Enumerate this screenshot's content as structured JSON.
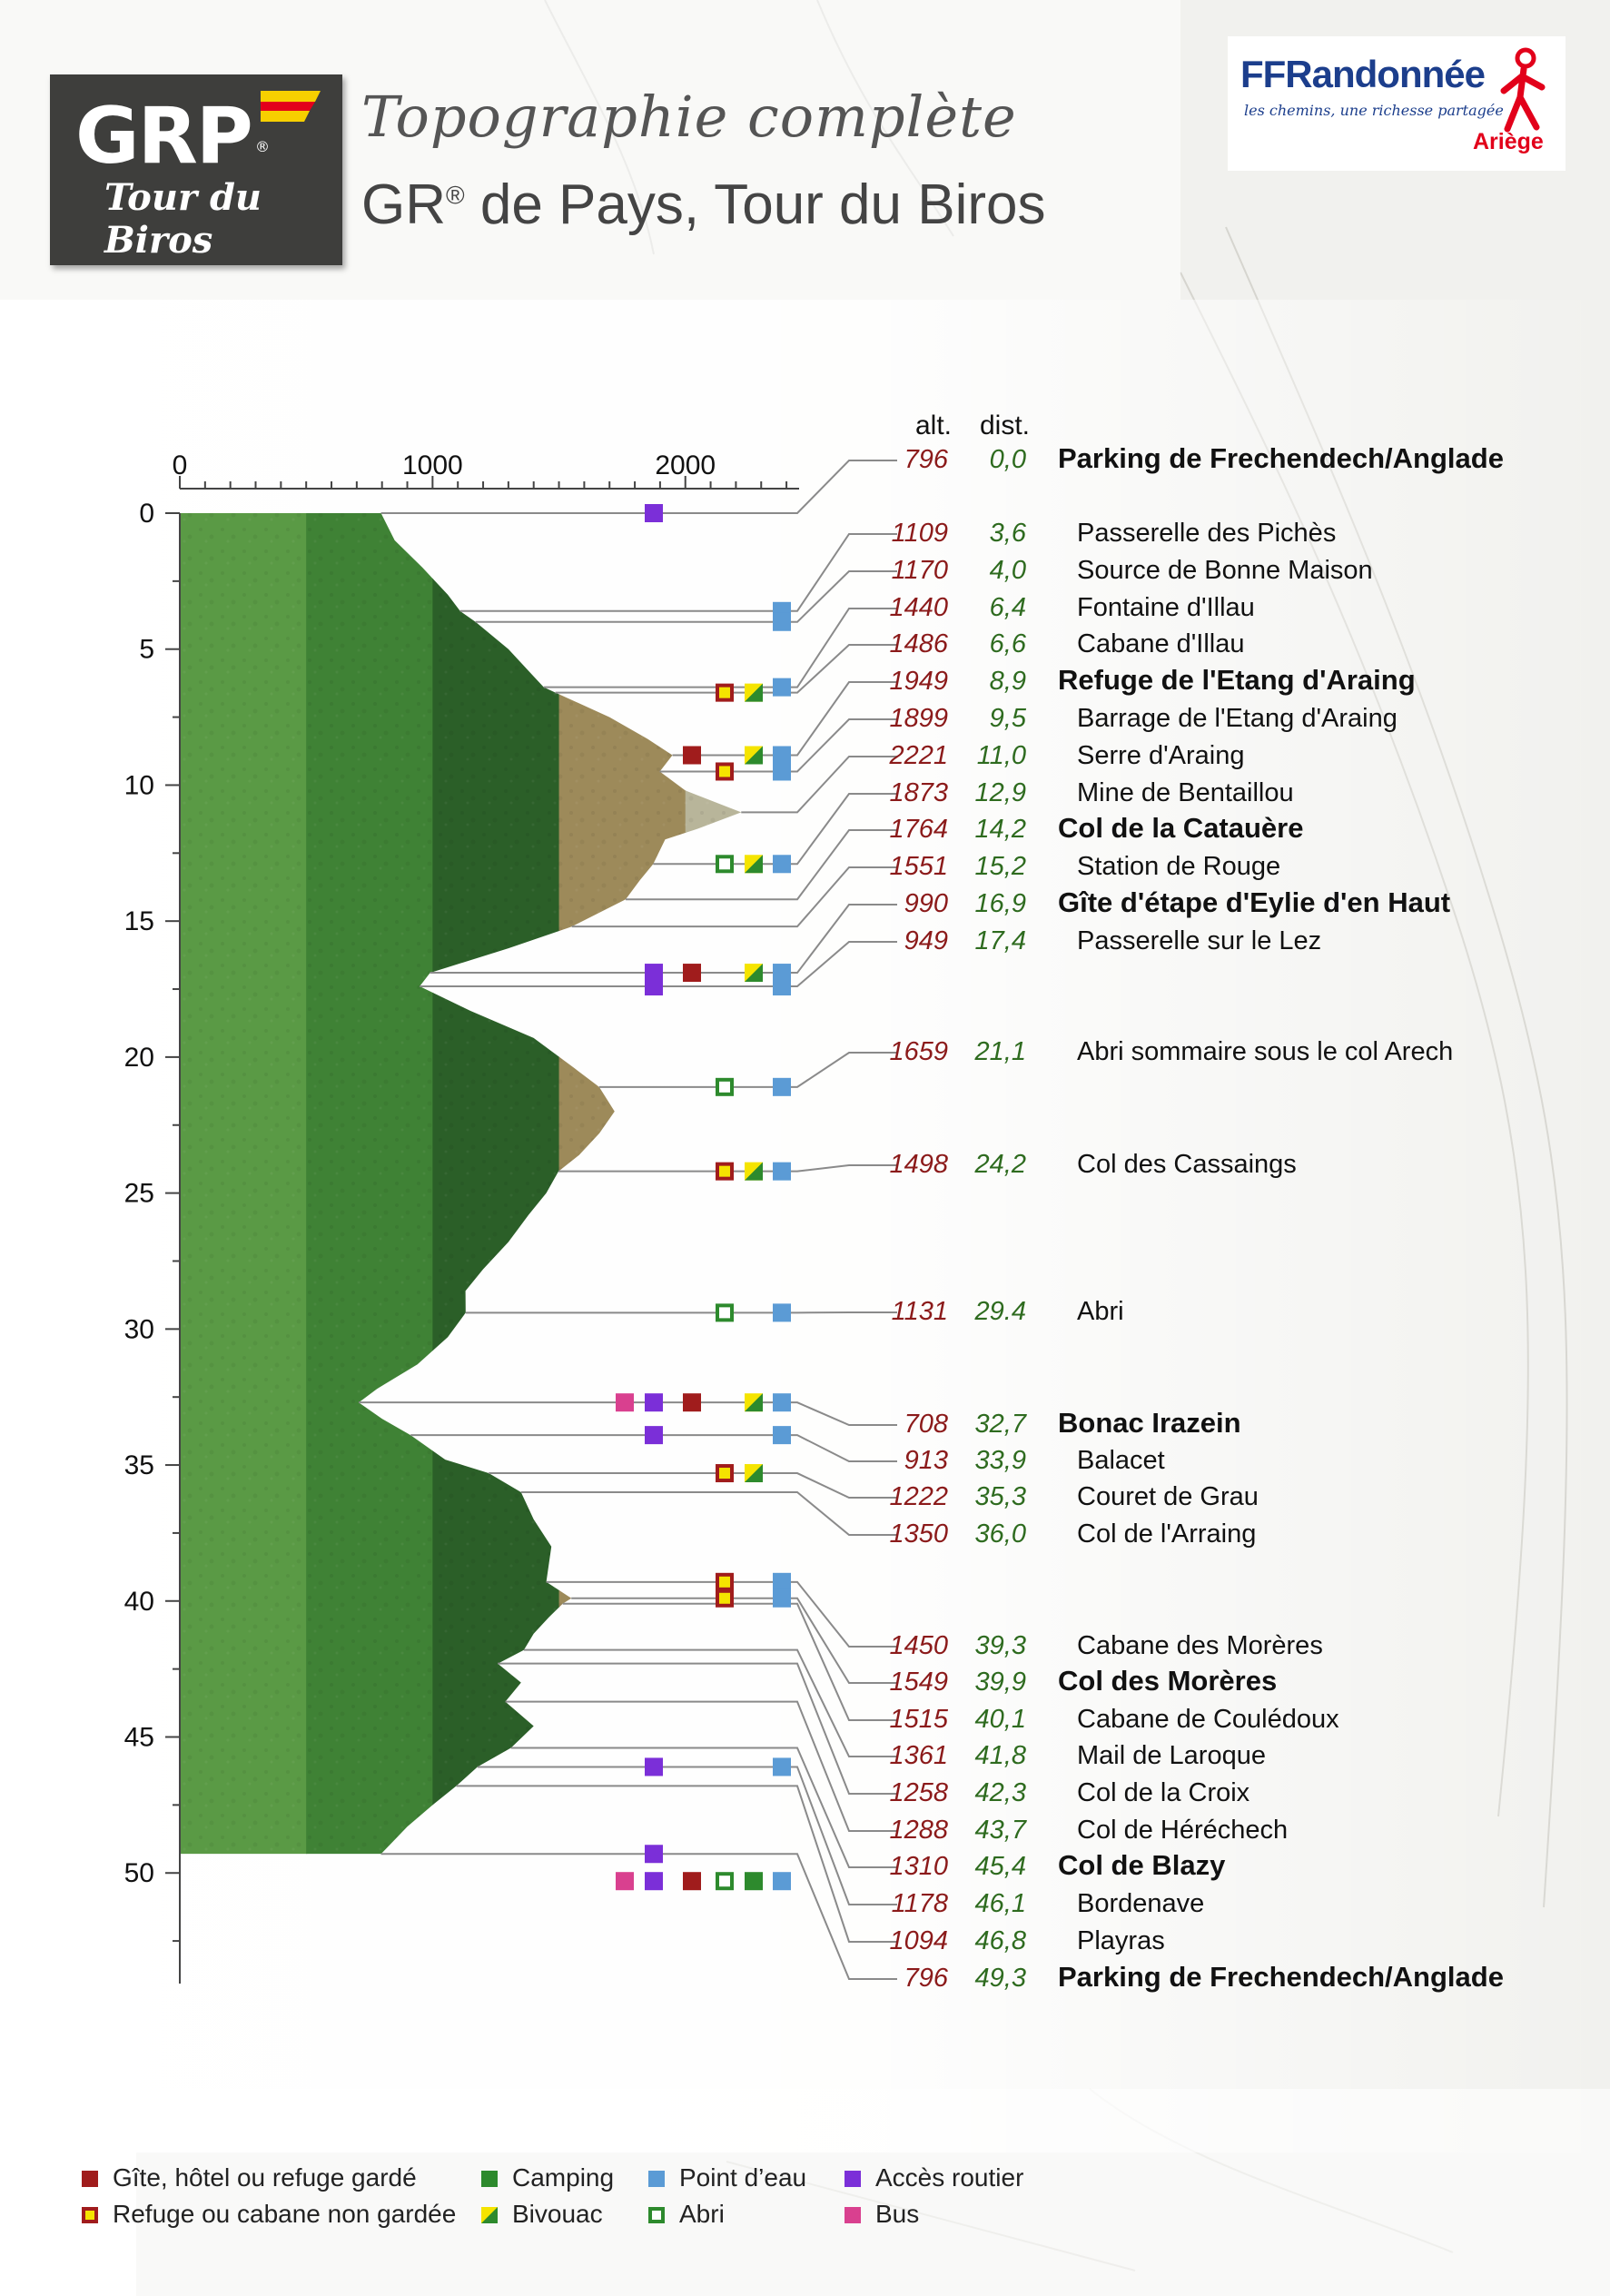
{
  "header": {
    "logo_text": "GRP",
    "logo_sub": "Tour du Biros",
    "subtitle": "Topographie complète",
    "title_prefix": "GR",
    "title_reg": "®",
    "title_rest": " de Pays, Tour du Biros"
  },
  "ffr_logo": {
    "name": "FFRandonnée",
    "slogan": "les chemins, une richesse partagée",
    "region": "Ariège"
  },
  "colors": {
    "alt": "#8b1a1a",
    "dist": "#2e6b1f",
    "band1": "#5a9a45",
    "band2": "#3f8235",
    "band3": "#2b5f28",
    "band4": "#9d8a5a",
    "band5": "#b8b59a",
    "gite": "#a01c1c",
    "refuge_border": "#a01c1c",
    "refuge_fill": "#f5e400",
    "camping": "#2d8a2d",
    "bivouac_a": "#2d8a2d",
    "bivouac_b": "#f5e400",
    "abri": "#2d8a2d",
    "eau": "#5b9bd5",
    "acces": "#7b2fd8",
    "bus": "#d9408f"
  },
  "chart_data": {
    "type": "area",
    "orientation": "vertical",
    "xlim": [
      0,
      2450
    ],
    "x_ticks": [
      "0",
      "1000",
      "2000"
    ],
    "ylim": [
      0,
      54
    ],
    "y_ticks": [
      "0",
      "5",
      "10",
      "15",
      "20",
      "25",
      "30",
      "35",
      "40",
      "45",
      "50"
    ],
    "column_headers": {
      "alt": "alt.",
      "dist": "dist."
    },
    "profile": [
      [
        0,
        796
      ],
      [
        1.0,
        850
      ],
      [
        2.0,
        960
      ],
      [
        3.0,
        1060
      ],
      [
        3.6,
        1109
      ],
      [
        4.0,
        1170
      ],
      [
        5.0,
        1300
      ],
      [
        6.0,
        1400
      ],
      [
        6.4,
        1440
      ],
      [
        6.6,
        1486
      ],
      [
        7.5,
        1700
      ],
      [
        8.3,
        1850
      ],
      [
        8.9,
        1949
      ],
      [
        9.5,
        1899
      ],
      [
        10.2,
        2000
      ],
      [
        11.0,
        2221
      ],
      [
        11.6,
        2050
      ],
      [
        12.0,
        1920
      ],
      [
        12.9,
        1873
      ],
      [
        13.5,
        1820
      ],
      [
        14.2,
        1764
      ],
      [
        15.2,
        1551
      ],
      [
        16.0,
        1300
      ],
      [
        16.9,
        990
      ],
      [
        17.4,
        949
      ],
      [
        18.3,
        1150
      ],
      [
        19.3,
        1400
      ],
      [
        20.4,
        1560
      ],
      [
        21.1,
        1659
      ],
      [
        22.0,
        1720
      ],
      [
        22.8,
        1660
      ],
      [
        23.6,
        1580
      ],
      [
        24.2,
        1498
      ],
      [
        25.0,
        1450
      ],
      [
        25.8,
        1380
      ],
      [
        26.8,
        1300
      ],
      [
        27.8,
        1200
      ],
      [
        28.6,
        1130
      ],
      [
        29.4,
        1131
      ],
      [
        30.3,
        1060
      ],
      [
        31.3,
        940
      ],
      [
        32.2,
        780
      ],
      [
        32.7,
        708
      ],
      [
        33.3,
        800
      ],
      [
        33.9,
        913
      ],
      [
        34.8,
        1050
      ],
      [
        35.3,
        1222
      ],
      [
        36.0,
        1350
      ],
      [
        37.0,
        1400
      ],
      [
        38.0,
        1470
      ],
      [
        39.3,
        1450
      ],
      [
        39.9,
        1549
      ],
      [
        40.1,
        1515
      ],
      [
        40.6,
        1460
      ],
      [
        41.2,
        1400
      ],
      [
        41.8,
        1361
      ],
      [
        42.3,
        1258
      ],
      [
        43.0,
        1350
      ],
      [
        43.7,
        1288
      ],
      [
        44.6,
        1400
      ],
      [
        45.4,
        1310
      ],
      [
        46.1,
        1178
      ],
      [
        46.8,
        1094
      ],
      [
        47.5,
        1000
      ],
      [
        48.3,
        900
      ],
      [
        49.3,
        796
      ]
    ],
    "waypoints": [
      {
        "alt": "796",
        "dist": "0,0",
        "name": "Parking de Frechendech/Anglade",
        "bold": true,
        "km": 0,
        "icons": [
          "acces"
        ]
      },
      {
        "alt": "1109",
        "dist": "3,6",
        "name": "Passerelle des Pichès",
        "bold": false,
        "km": 3.6,
        "icons": [
          "eau"
        ]
      },
      {
        "alt": "1170",
        "dist": "4,0",
        "name": "Source de Bonne Maison",
        "bold": false,
        "km": 4.0,
        "icons": [
          "eau"
        ]
      },
      {
        "alt": "1440",
        "dist": "6,4",
        "name": "Fontaine d'Illau",
        "bold": false,
        "km": 6.4,
        "icons": [
          "eau"
        ]
      },
      {
        "alt": "1486",
        "dist": "6,6",
        "name": "Cabane d'Illau",
        "bold": false,
        "km": 6.6,
        "icons": [
          "refuge",
          "bivouac"
        ]
      },
      {
        "alt": "1949",
        "dist": "8,9",
        "name": "Refuge de l'Etang d'Araing",
        "bold": true,
        "km": 8.9,
        "icons": [
          "gite",
          "bivouac",
          "eau"
        ]
      },
      {
        "alt": "1899",
        "dist": "9,5",
        "name": "Barrage de l'Etang d'Araing",
        "bold": false,
        "km": 9.5,
        "icons": [
          "refuge",
          "eau"
        ]
      },
      {
        "alt": "2221",
        "dist": "11,0",
        "name": "Serre d'Araing",
        "bold": false,
        "km": 11.0,
        "icons": []
      },
      {
        "alt": "1873",
        "dist": "12,9",
        "name": "Mine de Bentaillou",
        "bold": false,
        "km": 12.9,
        "icons": [
          "abri",
          "bivouac",
          "eau"
        ]
      },
      {
        "alt": "1764",
        "dist": "14,2",
        "name": "Col de la Catauère",
        "bold": true,
        "km": 14.2,
        "icons": []
      },
      {
        "alt": "1551",
        "dist": "15,2",
        "name": "Station de Rouge",
        "bold": false,
        "km": 15.2,
        "icons": []
      },
      {
        "alt": "990",
        "dist": "16,9",
        "name": "Gîte d'étape d'Eylie d'en Haut",
        "bold": true,
        "km": 16.9,
        "icons": [
          "acces",
          "gite",
          "bivouac",
          "eau"
        ]
      },
      {
        "alt": "949",
        "dist": "17,4",
        "name": "Passerelle sur le Lez",
        "bold": false,
        "km": 17.4,
        "icons": [
          "acces",
          "eau"
        ]
      },
      {
        "alt": "1659",
        "dist": "21,1",
        "name": "Abri sommaire sous le col Arech",
        "bold": false,
        "km": 21.1,
        "icons": [
          "abri",
          "eau"
        ]
      },
      {
        "alt": "1498",
        "dist": "24,2",
        "name": "Col des Cassaings",
        "bold": false,
        "km": 24.2,
        "icons": [
          "refuge",
          "bivouac",
          "eau"
        ]
      },
      {
        "alt": "1131",
        "dist": "29.4",
        "name": "Abri",
        "bold": false,
        "km": 29.4,
        "icons": [
          "abri",
          "eau"
        ]
      },
      {
        "alt": "708",
        "dist": "32,7",
        "name": "Bonac Irazein",
        "bold": true,
        "km": 32.7,
        "icons": [
          "bus",
          "acces",
          "gite",
          "bivouac",
          "eau"
        ]
      },
      {
        "alt": "913",
        "dist": "33,9",
        "name": "Balacet",
        "bold": false,
        "km": 33.9,
        "icons": [
          "acces",
          "eau"
        ]
      },
      {
        "alt": "1222",
        "dist": "35,3",
        "name": "Couret de Grau",
        "bold": false,
        "km": 35.3,
        "icons": [
          "refuge",
          "bivouac"
        ]
      },
      {
        "alt": "1350",
        "dist": "36,0",
        "name": "Col de l'Arraing",
        "bold": false,
        "km": 36.0,
        "icons": []
      },
      {
        "alt": "1450",
        "dist": "39,3",
        "name": "Cabane des Morères",
        "bold": false,
        "km": 39.3,
        "icons": [
          "refuge",
          "eau"
        ]
      },
      {
        "alt": "1549",
        "dist": "39,9",
        "name": "Col des Morères",
        "bold": true,
        "km": 39.9,
        "icons": [
          "refuge",
          "eau"
        ]
      },
      {
        "alt": "1515",
        "dist": "40,1",
        "name": "Cabane de Coulédoux",
        "bold": false,
        "km": 40.1,
        "icons": []
      },
      {
        "alt": "1361",
        "dist": "41,8",
        "name": "Mail de Laroque",
        "bold": false,
        "km": 41.8,
        "icons": []
      },
      {
        "alt": "1258",
        "dist": "42,3",
        "name": "Col de la Croix",
        "bold": false,
        "km": 42.3,
        "icons": []
      },
      {
        "alt": "1288",
        "dist": "43,7",
        "name": "Col de Héréchech",
        "bold": false,
        "km": 43.7,
        "icons": []
      },
      {
        "alt": "1310",
        "dist": "45,4",
        "name": "Col de Blazy",
        "bold": true,
        "km": 45.4,
        "icons": []
      },
      {
        "alt": "1178",
        "dist": "46,1",
        "name": "Bordenave",
        "bold": false,
        "km": 46.1,
        "icons": [
          "acces",
          "eau"
        ]
      },
      {
        "alt": "1094",
        "dist": "46,8",
        "name": "Playras",
        "bold": false,
        "km": 46.8,
        "icons": []
      },
      {
        "alt": "796",
        "dist": "49,3",
        "name": "Parking de Frechendech/Anglade",
        "bold": true,
        "km": 49.3,
        "icons": [
          "acces"
        ]
      }
    ],
    "extra_icon_rows": [
      {
        "km": 50.3,
        "icons": [
          "bus",
          "acces",
          "gite",
          "abri",
          "camping",
          "eau"
        ]
      }
    ],
    "legend": [
      {
        "key": "gite",
        "label": "Gîte, hôtel ou refuge gardé"
      },
      {
        "key": "camping",
        "label": "Camping"
      },
      {
        "key": "eau",
        "label": "Point d’eau"
      },
      {
        "key": "acces",
        "label": "Accès routier"
      },
      {
        "key": "refuge",
        "label": "Refuge ou cabane non gardée"
      },
      {
        "key": "bivouac",
        "label": "Bivouac"
      },
      {
        "key": "abri",
        "label": "Abri"
      },
      {
        "key": "bus",
        "label": "Bus"
      }
    ]
  }
}
